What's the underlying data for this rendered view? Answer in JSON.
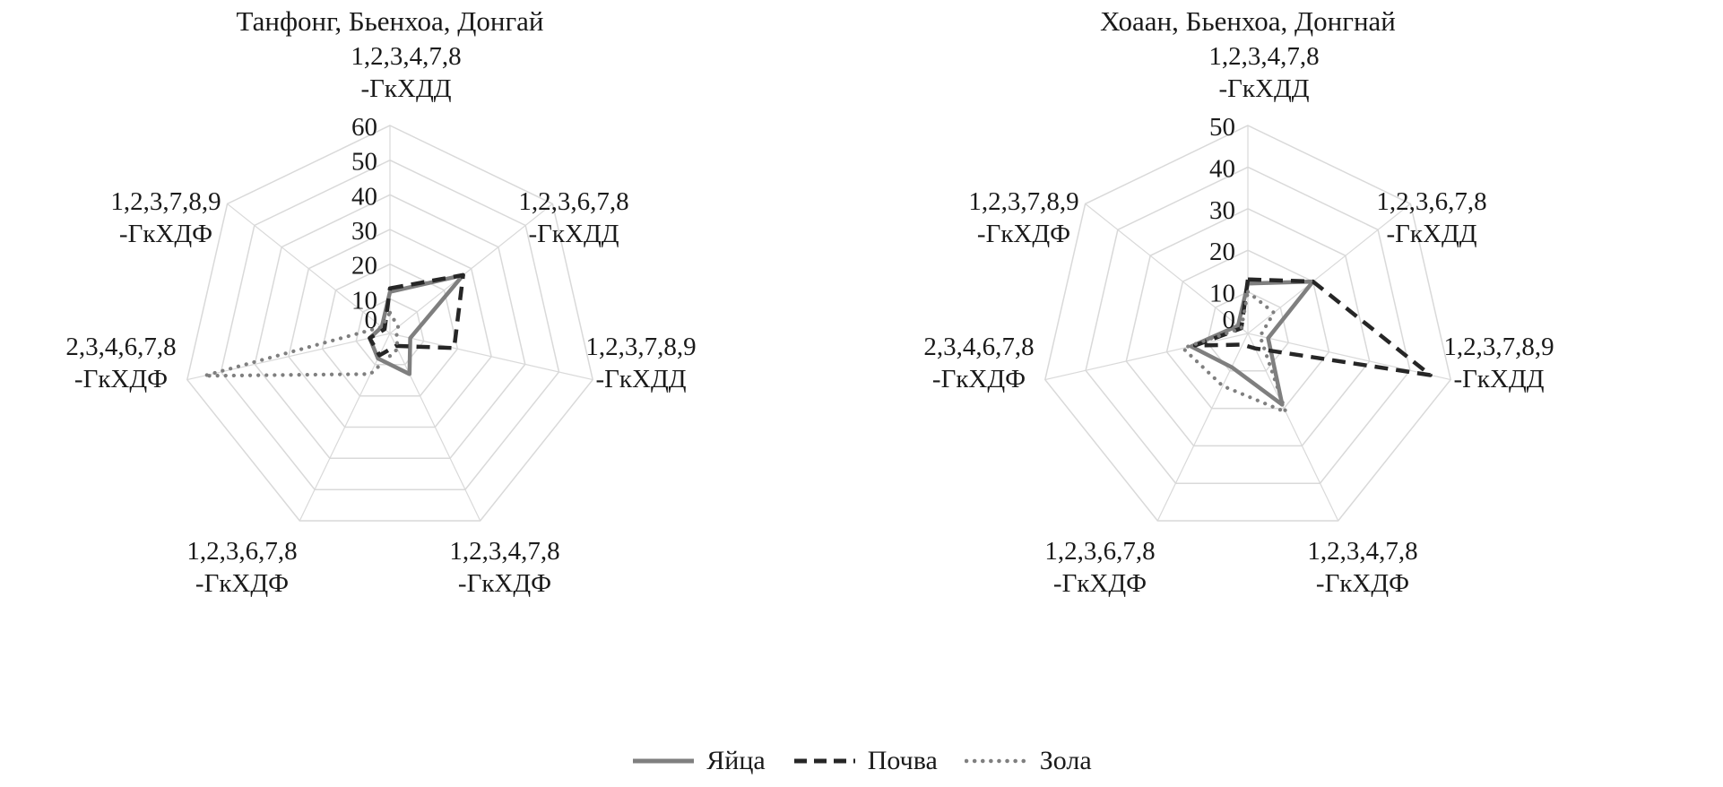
{
  "colors": {
    "grid": "#d9d9d9",
    "text": "#1a1a1a",
    "gray_series": "#7f7f7f",
    "dark_series": "#262626"
  },
  "legend": {
    "items": [
      {
        "label": "Яйца",
        "style": "solid",
        "color": "#7f7f7f"
      },
      {
        "label": "Почва",
        "style": "dashed",
        "color": "#262626"
      },
      {
        "label": "Зола",
        "style": "dotted",
        "color": "#7f7f7f"
      }
    ]
  },
  "chart_data": [
    {
      "type": "radar",
      "title": "Танфонг, Бьенхоа, Донгай",
      "axis_range": [
        0,
        60
      ],
      "max": 60,
      "ticks": [
        0,
        10,
        20,
        30,
        40,
        50,
        60
      ],
      "grid": true,
      "axes": [
        {
          "line1": "1,2,3,4,7,8",
          "line2": "-ГкХДД"
        },
        {
          "line1": "1,2,3,6,7,8",
          "line2": "-ГкХДД"
        },
        {
          "line1": "1,2,3,7,8,9",
          "line2": "-ГкХДД"
        },
        {
          "line1": "1,2,3,4,7,8",
          "line2": "-ГкХДФ"
        },
        {
          "line1": "1,2,3,6,7,8",
          "line2": "-ГкХДФ"
        },
        {
          "line1": "2,3,4,6,7,8",
          "line2": "-ГкХДФ"
        },
        {
          "line1": "1,2,3,7,8,9",
          "line2": "-ГкХДФ"
        }
      ],
      "series": [
        {
          "name": "Яйца",
          "style": "solid",
          "color": "#7f7f7f",
          "values": [
            12,
            27,
            6,
            13,
            8,
            6,
            3
          ]
        },
        {
          "name": "Почва",
          "style": "dashed",
          "color": "#262626",
          "values": [
            13,
            27,
            19,
            4,
            7,
            6,
            2
          ]
        },
        {
          "name": "Зола",
          "style": "dotted",
          "color": "#7f7f7f",
          "values": [
            6,
            3,
            2,
            5,
            13,
            55,
            3
          ]
        }
      ]
    },
    {
      "type": "radar",
      "title": "Хоаан, Бьенхоа, Донгнай",
      "axis_range": [
        0,
        50
      ],
      "max": 50,
      "ticks": [
        0,
        10,
        20,
        30,
        40,
        50
      ],
      "grid": true,
      "axes": [
        {
          "line1": "1,2,3,4,7,8",
          "line2": "-ГкХДД"
        },
        {
          "line1": "1,2,3,6,7,8",
          "line2": "-ГкХДД"
        },
        {
          "line1": "1,2,3,7,8,9",
          "line2": "-ГкХДД"
        },
        {
          "line1": "1,2,3,4,7,8",
          "line2": "-ГкХДФ"
        },
        {
          "line1": "1,2,3,6,7,8",
          "line2": "-ГкХДФ"
        },
        {
          "line1": "2,3,4,6,7,8",
          "line2": "-ГкХДФ"
        },
        {
          "line1": "1,2,3,7,8,9",
          "line2": "-ГкХДФ"
        }
      ],
      "series": [
        {
          "name": "Яйца",
          "style": "solid",
          "color": "#7f7f7f",
          "values": [
            12,
            20,
            5,
            19,
            9,
            14,
            3
          ]
        },
        {
          "name": "Почва",
          "style": "dashed",
          "color": "#262626",
          "values": [
            13,
            20,
            45,
            4,
            3,
            13,
            2
          ]
        },
        {
          "name": "Зола",
          "style": "dotted",
          "color": "#7f7f7f",
          "values": [
            10,
            8,
            3,
            21,
            14,
            16,
            2
          ]
        }
      ]
    }
  ]
}
